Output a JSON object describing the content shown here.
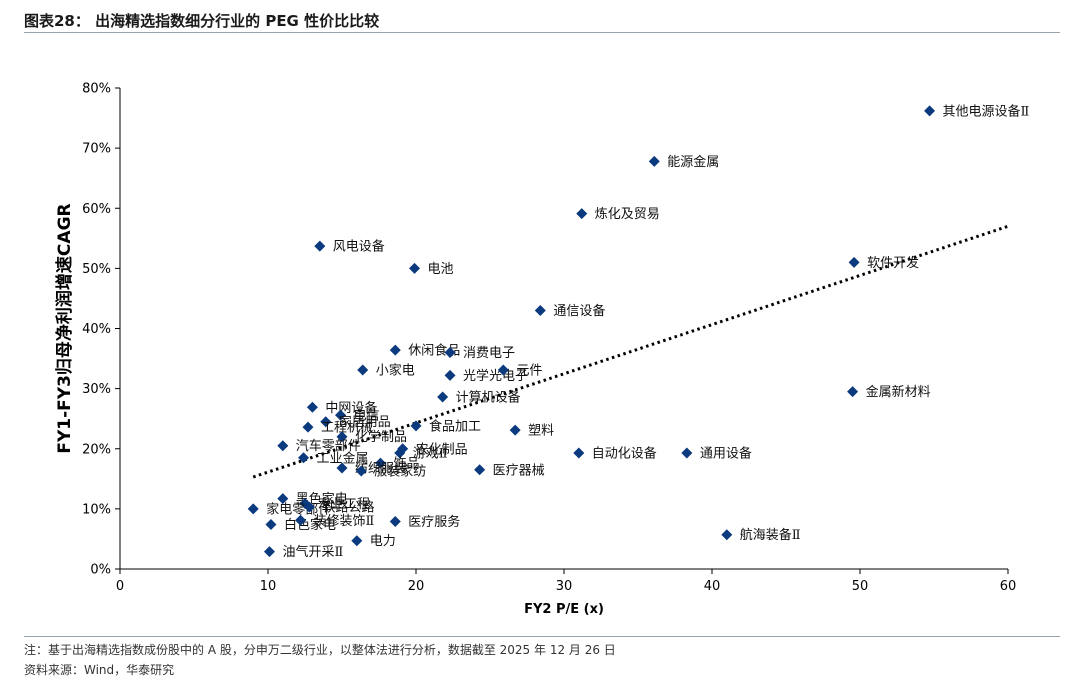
{
  "header": {
    "title": "图表28：  出海精选指数细分行业的 PEG 性价比比较"
  },
  "colors": {
    "marker": "#0b3a7e",
    "trend": "#000000",
    "rule": "#9aa3ad"
  },
  "chart_data": {
    "type": "scatter",
    "title": "",
    "xlabel": "FY2 P/E (x)",
    "ylabel": "FY1-FY3归母净利润增速CAGR",
    "xlim": [
      0,
      60
    ],
    "ylim": [
      0,
      80
    ],
    "x_ticks": [
      "0",
      "10",
      "20",
      "30",
      "40",
      "50",
      "60"
    ],
    "y_ticks": [
      "0%",
      "10%",
      "20%",
      "30%",
      "40%",
      "50%",
      "60%",
      "70%",
      "80%"
    ],
    "grid": false,
    "legend": "none",
    "trendline": {
      "style": "dotted",
      "from": [
        9,
        15.3
      ],
      "to": [
        60,
        57
      ]
    },
    "points": [
      {
        "label": "其他电源设备Ⅱ",
        "x": 54.7,
        "y": 76.2
      },
      {
        "label": "能源金属",
        "x": 36.1,
        "y": 67.8
      },
      {
        "label": "炼化及贸易",
        "x": 31.2,
        "y": 59.1
      },
      {
        "label": "风电设备",
        "x": 13.5,
        "y": 53.7
      },
      {
        "label": "电池",
        "x": 19.9,
        "y": 50.0
      },
      {
        "label": "软件开发",
        "x": 49.6,
        "y": 51.0
      },
      {
        "label": "通信设备",
        "x": 28.4,
        "y": 43.0
      },
      {
        "label": "休闲食品",
        "x": 18.6,
        "y": 36.4
      },
      {
        "label": "消费电子",
        "x": 22.3,
        "y": 36.0
      },
      {
        "label": "小家电",
        "x": 16.4,
        "y": 33.1
      },
      {
        "label": "光学光电子",
        "x": 22.3,
        "y": 32.2
      },
      {
        "label": "元件",
        "x": 25.9,
        "y": 33.1
      },
      {
        "label": "金属新材料",
        "x": 49.5,
        "y": 29.5
      },
      {
        "label": "计算机设备",
        "x": 21.8,
        "y": 28.6
      },
      {
        "label": "中网设备",
        "x": 13.0,
        "y": 26.9
      },
      {
        "label": "电信",
        "x": 14.9,
        "y": 25.6
      },
      {
        "label": "家居用品",
        "x": 13.9,
        "y": 24.5
      },
      {
        "label": "工程机械",
        "x": 12.7,
        "y": 23.6
      },
      {
        "label": "食品加工",
        "x": 20.0,
        "y": 23.8
      },
      {
        "label": "化学制品",
        "x": 15.0,
        "y": 22.0
      },
      {
        "label": "塑料",
        "x": 26.7,
        "y": 23.1
      },
      {
        "label": "汽车零部件",
        "x": 11.0,
        "y": 20.5
      },
      {
        "label": "农化制品",
        "x": 19.1,
        "y": 20.0
      },
      {
        "label": "游戏Ⅱ",
        "x": 18.9,
        "y": 19.3
      },
      {
        "label": "自动化设备",
        "x": 31.0,
        "y": 19.3
      },
      {
        "label": "通用设备",
        "x": 38.3,
        "y": 19.3
      },
      {
        "label": "工业金属",
        "x": 12.4,
        "y": 18.5
      },
      {
        "label": "饰品",
        "x": 17.6,
        "y": 17.6
      },
      {
        "label": "纺织服装",
        "x": 15.0,
        "y": 16.8
      },
      {
        "label": "服装家纺",
        "x": 16.3,
        "y": 16.3
      },
      {
        "label": "医疗器械",
        "x": 24.3,
        "y": 16.5
      },
      {
        "label": "黑色家电",
        "x": 11.0,
        "y": 11.7
      },
      {
        "label": "专业工程",
        "x": 12.5,
        "y": 10.9
      },
      {
        "label": "家电零部件",
        "x": 9.0,
        "y": 10.0
      },
      {
        "label": "铁路公路",
        "x": 12.8,
        "y": 10.3
      },
      {
        "label": "白色家电",
        "x": 10.2,
        "y": 7.4
      },
      {
        "label": "装修装饰Ⅱ",
        "x": 12.2,
        "y": 8.1
      },
      {
        "label": "医疗服务",
        "x": 18.6,
        "y": 7.9
      },
      {
        "label": "电力",
        "x": 16.0,
        "y": 4.7
      },
      {
        "label": "油气开采Ⅱ",
        "x": 10.1,
        "y": 2.9
      },
      {
        "label": "航海装备Ⅱ",
        "x": 41.0,
        "y": 5.7
      }
    ]
  },
  "footer": {
    "note": "注：基于出海精选指数成份股中的 A 股，分申万二级行业，以整体法进行分析，数据截至 2025 年 12 月 26 日",
    "source": "资料来源：Wind，华泰研究"
  }
}
